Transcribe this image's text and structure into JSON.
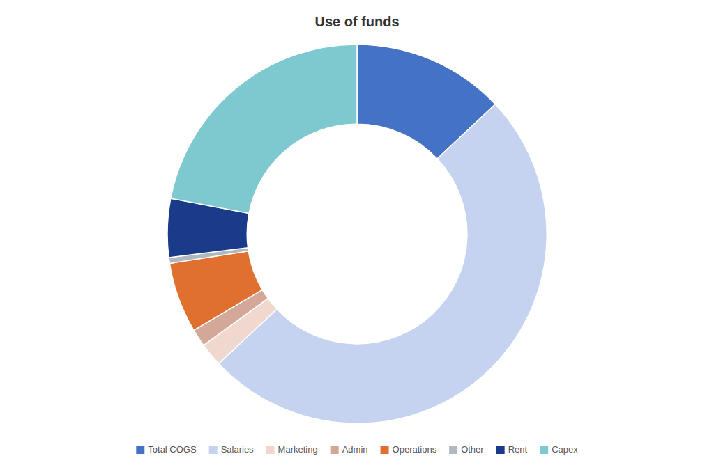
{
  "chart_data": {
    "type": "donut",
    "title": "Use of funds",
    "categories": [
      "Total COGS",
      "Salaries",
      "Marketing",
      "Admin",
      "Operations",
      "Other",
      "Rent",
      "Capex"
    ],
    "values": [
      13,
      50,
      2,
      1.5,
      6,
      0.5,
      5,
      22
    ],
    "colors": [
      "#4472C4",
      "#C5D3F0",
      "#F0D8CE",
      "#D4A898",
      "#E07030",
      "#B0B8C0",
      "#1A3A8A",
      "#7EC8D0"
    ],
    "legend": "bottom"
  }
}
